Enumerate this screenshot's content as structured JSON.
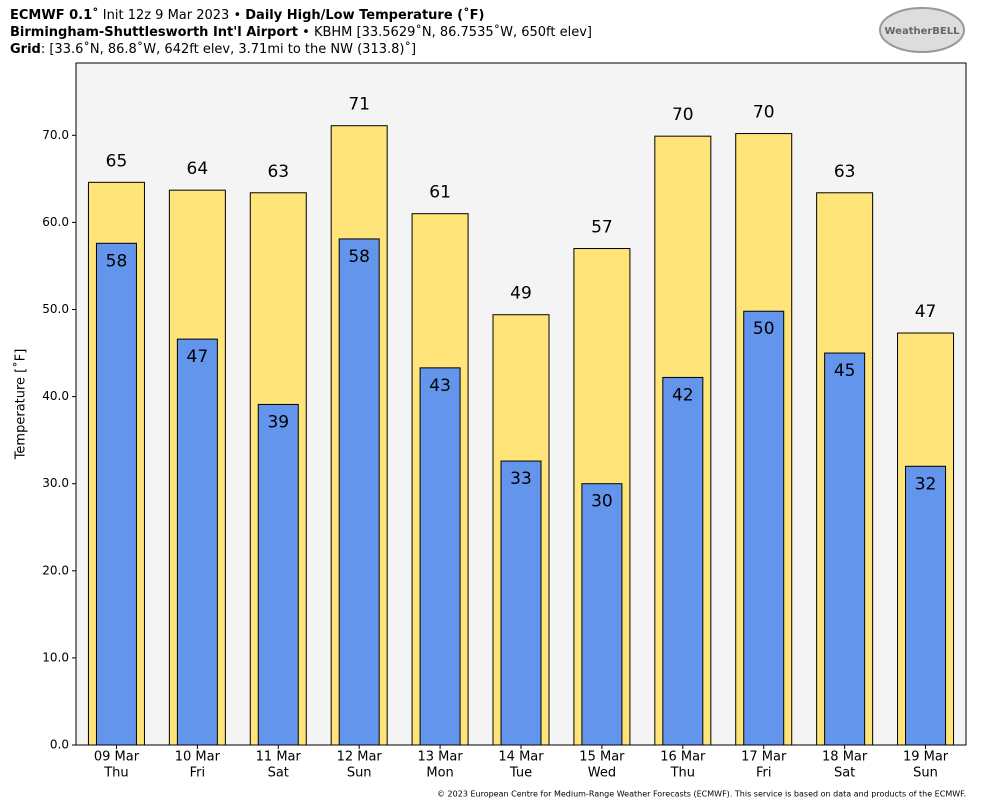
{
  "header": {
    "line1": [
      {
        "text": "ECMWF 0.1˚",
        "bold": true
      },
      {
        "text": " Init 12z 9 Mar 2023 • ",
        "bold": false
      },
      {
        "text": "Daily High/Low Temperature (˚F)",
        "bold": true
      }
    ],
    "line2": [
      {
        "text": "Birmingham-Shuttlesworth Int'l Airport",
        "bold": true
      },
      {
        "text": " • KBHM [33.5629˚N, 86.7535˚W, 650ft elev]",
        "bold": false
      }
    ],
    "line3": [
      {
        "text": "Grid",
        "bold": true
      },
      {
        "text": ": [33.6˚N, 86.8˚W, 642ft elev, 3.71mi to the NW (313.8)˚]",
        "bold": false
      }
    ]
  },
  "logo": "WeatherBELL",
  "footer": "© 2023 European Centre for Medium-Range Weather Forecasts (ECMWF). This service is based on data and products of the ECMWF.",
  "chart_data": {
    "type": "bar",
    "ylabel": "Temperature [˚F]",
    "categories": [
      "09 Mar",
      "10 Mar",
      "11 Mar",
      "12 Mar",
      "13 Mar",
      "14 Mar",
      "15 Mar",
      "16 Mar",
      "17 Mar",
      "18 Mar",
      "19 Mar"
    ],
    "weekdays": [
      "Thu",
      "Fri",
      "Sat",
      "Sun",
      "Mon",
      "Tue",
      "Wed",
      "Thu",
      "Fri",
      "Sat",
      "Sun"
    ],
    "series": [
      {
        "color": "#ffe47a",
        "values": [
          64.6,
          63.7,
          63.4,
          71.1,
          61.0,
          49.4,
          57.0,
          69.9,
          70.2,
          63.4,
          47.3
        ],
        "value_labels": [
          "65",
          "64",
          "63",
          "71",
          "61",
          "49",
          "57",
          "70",
          "70",
          "63",
          "47"
        ]
      },
      {
        "color": "#6495ed",
        "values": [
          57.6,
          46.6,
          39.1,
          58.1,
          43.3,
          32.6,
          30.0,
          42.2,
          49.8,
          45.0,
          32.0
        ],
        "value_labels": [
          "58",
          "47",
          "39",
          "58",
          "43",
          "33",
          "30",
          "42",
          "50",
          "45",
          "32"
        ]
      }
    ],
    "ylim": [
      0,
      78.3
    ],
    "yticks": [
      {
        "value": 0,
        "label": "0.0"
      },
      {
        "value": 10,
        "label": "10.0"
      },
      {
        "value": 20,
        "label": "20.0"
      },
      {
        "value": 30,
        "label": "30.0"
      },
      {
        "value": 40,
        "label": "40.0"
      },
      {
        "value": 50,
        "label": "50.0"
      },
      {
        "value": 60,
        "label": "60.0"
      },
      {
        "value": 70,
        "label": "70.0"
      }
    ],
    "background": "#f4f4f4"
  }
}
